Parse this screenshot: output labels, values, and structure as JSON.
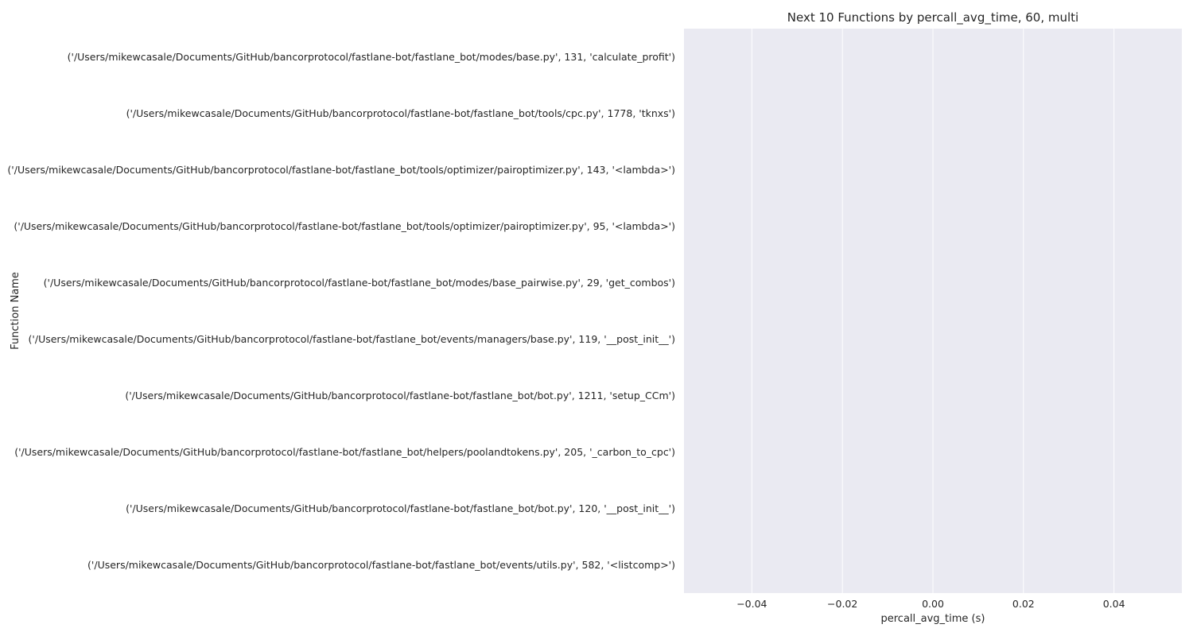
{
  "chart_data": {
    "type": "bar",
    "orientation": "horizontal",
    "title": "Next 10 Functions by percall_avg_time, 60, multi",
    "xlabel": "percall_avg_time (s)",
    "ylabel": "Function Name",
    "xlim": [
      -0.055,
      0.055
    ],
    "xticks": [
      -0.04,
      -0.02,
      0.0,
      0.02,
      0.04
    ],
    "xtick_labels": [
      "−0.04",
      "−0.02",
      "0.00",
      "0.02",
      "0.04"
    ],
    "grid": true,
    "background": "#eaeaf2",
    "grid_color": "#ffffff",
    "categories": [
      "('/Users/mikewcasale/Documents/GitHub/bancorprotocol/fastlane-bot/fastlane_bot/modes/base.py', 131, 'calculate_profit')",
      "('/Users/mikewcasale/Documents/GitHub/bancorprotocol/fastlane-bot/fastlane_bot/tools/cpc.py', 1778, 'tknxs')",
      "('/Users/mikewcasale/Documents/GitHub/bancorprotocol/fastlane-bot/fastlane_bot/tools/optimizer/pairoptimizer.py', 143, '<lambda>')",
      "('/Users/mikewcasale/Documents/GitHub/bancorprotocol/fastlane-bot/fastlane_bot/tools/optimizer/pairoptimizer.py', 95, '<lambda>')",
      "('/Users/mikewcasale/Documents/GitHub/bancorprotocol/fastlane-bot/fastlane_bot/modes/base_pairwise.py', 29, 'get_combos')",
      "('/Users/mikewcasale/Documents/GitHub/bancorprotocol/fastlane-bot/fastlane_bot/events/managers/base.py', 119, '__post_init__')",
      "('/Users/mikewcasale/Documents/GitHub/bancorprotocol/fastlane-bot/fastlane_bot/bot.py', 1211, 'setup_CCm')",
      "('/Users/mikewcasale/Documents/GitHub/bancorprotocol/fastlane-bot/fastlane_bot/helpers/poolandtokens.py', 205, '_carbon_to_cpc')",
      "('/Users/mikewcasale/Documents/GitHub/bancorprotocol/fastlane-bot/fastlane_bot/bot.py', 120, '__post_init__')",
      "('/Users/mikewcasale/Documents/GitHub/bancorprotocol/fastlane-bot/fastlane_bot/events/utils.py', 582, '<listcomp>')"
    ],
    "values": [
      0,
      0,
      0,
      0,
      0,
      0,
      0,
      0,
      0,
      0
    ]
  }
}
